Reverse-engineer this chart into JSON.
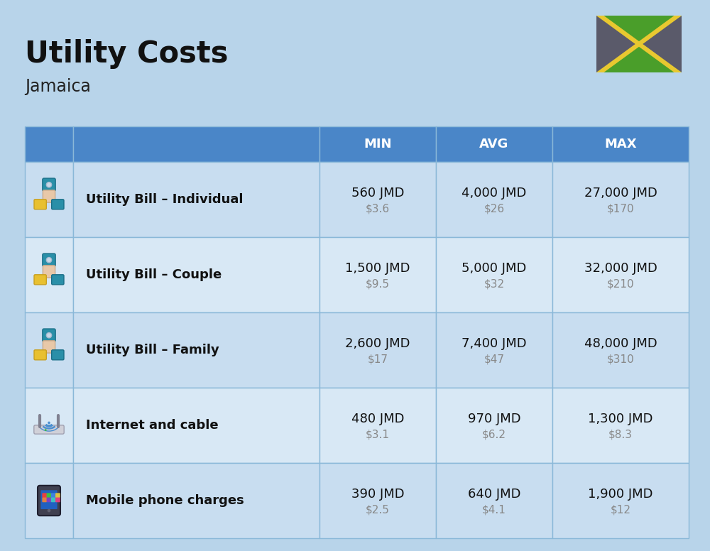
{
  "title": "Utility Costs",
  "subtitle": "Jamaica",
  "background_color": "#b8d4ea",
  "header_bg_color": "#4a86c8",
  "header_text_color": "#ffffff",
  "row_bg_color_1": "#c8ddf0",
  "row_bg_color_2": "#d8e8f5",
  "cell_border_color": "#9ab8d8",
  "columns": [
    "MIN",
    "AVG",
    "MAX"
  ],
  "rows": [
    {
      "label": "Utility Bill – Individual",
      "icon": "utility",
      "min_jmd": "560 JMD",
      "min_usd": "$3.6",
      "avg_jmd": "4,000 JMD",
      "avg_usd": "$26",
      "max_jmd": "27,000 JMD",
      "max_usd": "$170"
    },
    {
      "label": "Utility Bill – Couple",
      "icon": "utility",
      "min_jmd": "1,500 JMD",
      "min_usd": "$9.5",
      "avg_jmd": "5,000 JMD",
      "avg_usd": "$32",
      "max_jmd": "32,000 JMD",
      "max_usd": "$210"
    },
    {
      "label": "Utility Bill – Family",
      "icon": "utility",
      "min_jmd": "2,600 JMD",
      "min_usd": "$17",
      "avg_jmd": "7,400 JMD",
      "avg_usd": "$47",
      "max_jmd": "48,000 JMD",
      "max_usd": "$310"
    },
    {
      "label": "Internet and cable",
      "icon": "internet",
      "min_jmd": "480 JMD",
      "min_usd": "$3.1",
      "avg_jmd": "970 JMD",
      "avg_usd": "$6.2",
      "max_jmd": "1,300 JMD",
      "max_usd": "$8.3"
    },
    {
      "label": "Mobile phone charges",
      "icon": "mobile",
      "min_jmd": "390 JMD",
      "min_usd": "$2.5",
      "avg_jmd": "640 JMD",
      "avg_usd": "$4.1",
      "max_jmd": "1,900 JMD",
      "max_usd": "$12"
    }
  ],
  "title_fontsize": 30,
  "subtitle_fontsize": 17,
  "header_fontsize": 13,
  "label_fontsize": 13,
  "value_fontsize": 13,
  "usd_fontsize": 11,
  "flag_gray": "#5a5a6a",
  "flag_green": "#4a9e2a",
  "flag_gold": "#e8c830"
}
